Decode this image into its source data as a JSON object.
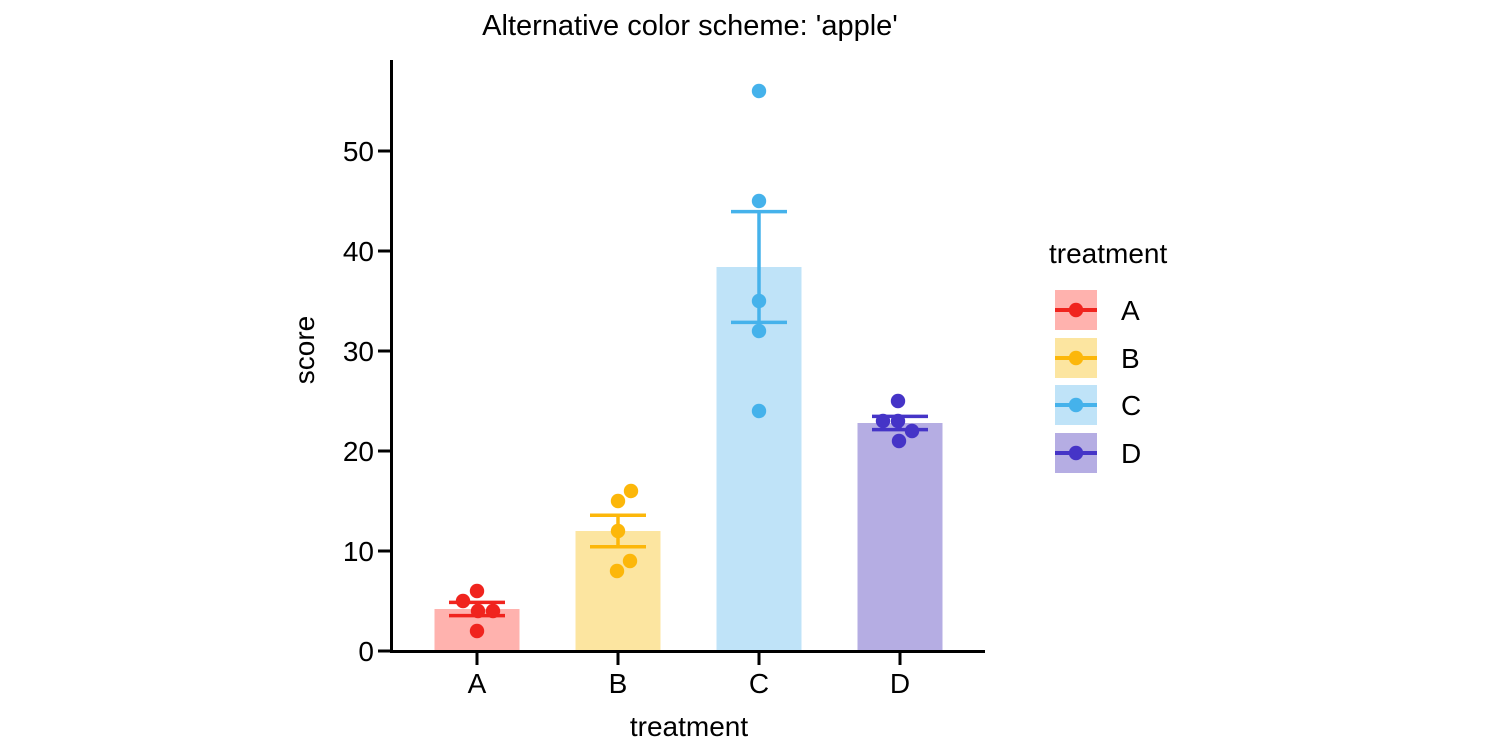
{
  "chart_data": {
    "type": "bar",
    "title": "Alternative color scheme: 'apple'",
    "xlabel": "treatment",
    "ylabel": "score",
    "ylim": [
      0,
      59
    ],
    "yticks": [
      0,
      10,
      20,
      30,
      40,
      50
    ],
    "categories": [
      "A",
      "B",
      "C",
      "D"
    ],
    "grid": false,
    "error_bars": "mean ± SEM",
    "legend": {
      "title": "treatment",
      "position": "right"
    },
    "series": [
      {
        "name": "A",
        "color": "#F0241E",
        "fill": "#FFB2AE",
        "values": [
          6,
          5,
          4,
          4,
          2
        ],
        "jitter": [
          0,
          -14,
          1,
          16,
          0
        ],
        "mean": 4.2,
        "sem": 0.66
      },
      {
        "name": "B",
        "color": "#FCB70A",
        "fill": "#FCE5A0",
        "values": [
          16,
          15,
          12,
          9,
          8
        ],
        "jitter": [
          13,
          0,
          0,
          12,
          -1
        ],
        "mean": 12.0,
        "sem": 1.58
      },
      {
        "name": "C",
        "color": "#45B2EB",
        "fill": "#BFE3F8",
        "values": [
          56,
          45,
          35,
          32,
          24
        ],
        "jitter": [
          0,
          0,
          0,
          0,
          0
        ],
        "mean": 38.4,
        "sem": 5.54
      },
      {
        "name": "D",
        "color": "#4534C7",
        "fill": "#B5ADE3",
        "values": [
          25,
          23,
          23,
          22,
          21
        ],
        "jitter": [
          -2,
          -17,
          -2,
          12,
          -1
        ],
        "mean": 22.8,
        "sem": 0.66
      }
    ]
  }
}
